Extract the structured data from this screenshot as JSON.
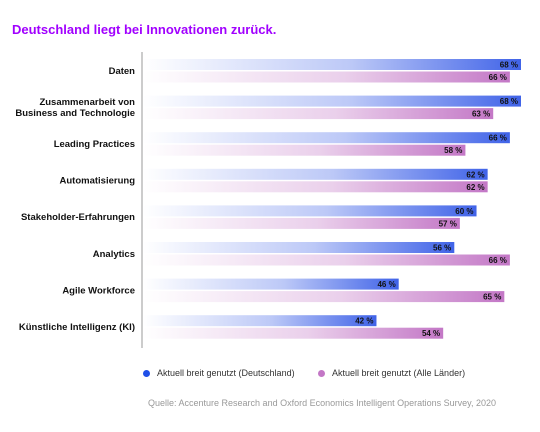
{
  "title": "Deutschland liegt bei Innovationen zurück.",
  "chart_data": {
    "type": "bar",
    "orientation": "horizontal",
    "categories": [
      [
        "Daten"
      ],
      [
        "Zusammenarbeit von",
        "Business and Technologie"
      ],
      [
        "Leading Practices"
      ],
      [
        "Automatisierung"
      ],
      [
        "Stakeholder-Erfahrungen"
      ],
      [
        "Analytics"
      ],
      [
        "Agile Workforce"
      ],
      [
        "Künstliche Intelligenz (KI)"
      ]
    ],
    "series": [
      {
        "name": "Aktuell breit genutzt (Deutschland)",
        "values": [
          68,
          68,
          66,
          62,
          60,
          56,
          46,
          42
        ],
        "color": "#4063e8"
      },
      {
        "name": "Aktuell breit genutzt (Alle Länder)",
        "values": [
          66,
          63,
          58,
          62,
          57,
          66,
          65,
          54
        ],
        "color": "#c377c6"
      }
    ],
    "value_suffix": " %",
    "xlim": [
      0,
      68
    ],
    "legend_position": "bottom"
  },
  "source": "Quelle: Accenture Research and Oxford Economics Intelligent Operations Survey, 2020"
}
